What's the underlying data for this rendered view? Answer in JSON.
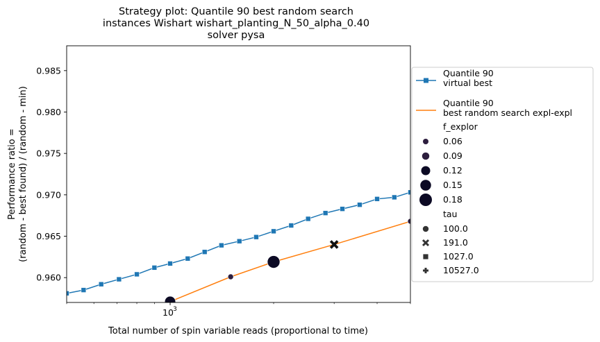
{
  "chart_data": {
    "type": "line",
    "title_lines": [
      "Strategy plot: Quantile 90 best random search",
      "instances Wishart wishart_planting_N_50_alpha_0.40",
      "solver pysa"
    ],
    "xlabel": "Total number of spin variable reads (proportional to time)",
    "ylabel_lines": [
      "Performance ratio =",
      "(random - best found) / (random - min)"
    ],
    "x_scale": "log",
    "xlim": [
      500,
      5000
    ],
    "ylim": [
      0.957,
      0.988
    ],
    "x_tick_labels": [
      {
        "value": 1000,
        "label": "10",
        "exponent": "3"
      }
    ],
    "y_ticks": [
      0.96,
      0.965,
      0.97,
      0.975,
      0.98,
      0.985
    ],
    "y_tick_labels": [
      "0.960",
      "0.965",
      "0.970",
      "0.975",
      "0.980",
      "0.985"
    ],
    "grid": false,
    "legend_placement": "outside-right",
    "series": [
      {
        "name": "Quantile 90\n virtual best",
        "color": "#1f77b4",
        "marker": "square",
        "x": [
          500,
          560,
          630,
          710,
          800,
          900,
          1000,
          1125,
          1260,
          1410,
          1590,
          1780,
          2000,
          2250,
          2520,
          2830,
          3170,
          3560,
          4000,
          4490,
          5000
        ],
        "y": [
          0.9581,
          0.9585,
          0.9592,
          0.9598,
          0.9604,
          0.9612,
          0.9617,
          0.9623,
          0.9631,
          0.9639,
          0.9644,
          0.9649,
          0.9656,
          0.9663,
          0.9671,
          0.9678,
          0.9683,
          0.9688,
          0.9695,
          0.9697,
          0.9703
        ]
      },
      {
        "name": "Quantile 90\n best random search expl-expl",
        "color": "#ff7f0e",
        "marker": "none",
        "x": [
          1000,
          1500,
          2000,
          3000,
          5000
        ],
        "y": [
          0.9571,
          0.9601,
          0.9619,
          0.964,
          0.9668
        ]
      }
    ],
    "scatter_points": [
      {
        "x": 1000,
        "y": 0.9571,
        "f_explor": 0.15,
        "tau": 100.0
      },
      {
        "x": 1500,
        "y": 0.9601,
        "f_explor": 0.06,
        "tau": 100.0
      },
      {
        "x": 2000,
        "y": 0.9619,
        "f_explor": 0.18,
        "tau": 100.0
      },
      {
        "x": 3000,
        "y": 0.964,
        "f_explor": 0.06,
        "tau": 191.0
      },
      {
        "x": 5000,
        "y": 0.9668,
        "f_explor": 0.06,
        "tau": 100.0
      }
    ],
    "legend": {
      "f_explor_title": "f_explor",
      "f_explor_entries": [
        {
          "label": "0.06",
          "value": 0.06
        },
        {
          "label": "0.09",
          "value": 0.09
        },
        {
          "label": "0.12",
          "value": 0.12
        },
        {
          "label": "0.15",
          "value": 0.15
        },
        {
          "label": "0.18",
          "value": 0.18
        }
      ],
      "tau_title": "tau",
      "tau_entries": [
        {
          "label": "100.0",
          "marker": "circle"
        },
        {
          "label": "191.0",
          "marker": "x"
        },
        {
          "label": "1027.0",
          "marker": "square"
        },
        {
          "label": "10527.0",
          "marker": "plus"
        }
      ]
    },
    "scatter_color_low": "#2d1e3e",
    "scatter_color_high": "#0c0a24"
  }
}
